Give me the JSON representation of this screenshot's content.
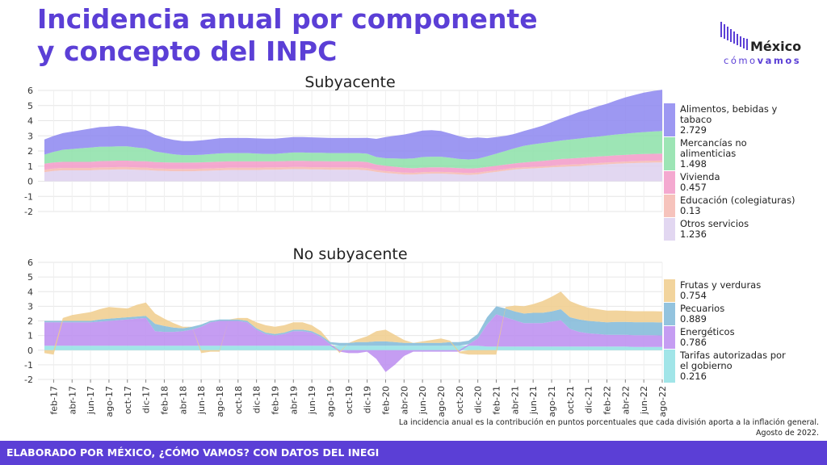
{
  "title": "Incidencia anual por componente y concepto del INPC",
  "logo": {
    "name": "México",
    "sub1": "cómo",
    "sub2": "vamos"
  },
  "footnote": {
    "line1": "La incidencia anual es la contribución en puntos porcentuales que cada división aporta a la inflación general.",
    "line2": "Agosto de 2022."
  },
  "footer": "ELABORADO POR MÉXICO, ¿CÓMO VAMOS? CON DATOS DEL INEGI",
  "colors": {
    "alimentos": "#8c86f0",
    "mercancias": "#8ce0a8",
    "vivienda": "#f29ac8",
    "educacion": "#f5b8b0",
    "otros": "#ddd0ee",
    "frutas": "#f0cd8c",
    "pecuarios": "#80b8d8",
    "energeticos": "#bb8cf0",
    "tarifas": "#90e0e4"
  },
  "chart_data": [
    {
      "type": "area",
      "title": "Subyacente",
      "stacked": true,
      "ylim": [
        -2,
        6
      ],
      "yticks": [
        -2,
        -1,
        0,
        1,
        2,
        3,
        4,
        5,
        6
      ],
      "x_start": "2017-01",
      "x_end": "2022-08",
      "legend": "right",
      "series": [
        {
          "name": "Otros servicios",
          "color_key": "otros",
          "last_value": "1.236",
          "values": [
            0.6,
            0.68,
            0.72,
            0.72,
            0.72,
            0.72,
            0.75,
            0.76,
            0.78,
            0.78,
            0.75,
            0.74,
            0.7,
            0.68,
            0.66,
            0.66,
            0.66,
            0.68,
            0.7,
            0.72,
            0.74,
            0.74,
            0.74,
            0.74,
            0.76,
            0.76,
            0.78,
            0.8,
            0.8,
            0.78,
            0.78,
            0.76,
            0.76,
            0.76,
            0.76,
            0.72,
            0.62,
            0.55,
            0.5,
            0.45,
            0.44,
            0.48,
            0.5,
            0.5,
            0.48,
            0.45,
            0.42,
            0.45,
            0.55,
            0.62,
            0.7,
            0.78,
            0.82,
            0.85,
            0.88,
            0.92,
            0.95,
            0.98,
            1.0,
            1.05,
            1.08,
            1.12,
            1.15,
            1.18,
            1.2,
            1.22,
            1.23,
            1.236
          ]
        },
        {
          "name": "Educación (colegiaturas)",
          "color_key": "educacion",
          "last_value": "0.13",
          "values": [
            0.16,
            0.16,
            0.16,
            0.16,
            0.16,
            0.16,
            0.16,
            0.16,
            0.16,
            0.16,
            0.16,
            0.16,
            0.15,
            0.15,
            0.15,
            0.15,
            0.15,
            0.15,
            0.15,
            0.15,
            0.15,
            0.15,
            0.15,
            0.15,
            0.15,
            0.15,
            0.15,
            0.15,
            0.15,
            0.15,
            0.15,
            0.15,
            0.15,
            0.15,
            0.15,
            0.15,
            0.12,
            0.12,
            0.12,
            0.12,
            0.12,
            0.12,
            0.12,
            0.12,
            0.12,
            0.12,
            0.12,
            0.12,
            0.1,
            0.1,
            0.1,
            0.1,
            0.1,
            0.1,
            0.1,
            0.1,
            0.12,
            0.12,
            0.12,
            0.12,
            0.12,
            0.12,
            0.12,
            0.12,
            0.13,
            0.13,
            0.13,
            0.13
          ]
        },
        {
          "name": "Vivienda",
          "color_key": "vivienda",
          "last_value": "0.457",
          "values": [
            0.4,
            0.4,
            0.4,
            0.4,
            0.4,
            0.4,
            0.42,
            0.42,
            0.42,
            0.42,
            0.42,
            0.42,
            0.42,
            0.42,
            0.42,
            0.42,
            0.42,
            0.42,
            0.42,
            0.42,
            0.42,
            0.42,
            0.42,
            0.42,
            0.4,
            0.4,
            0.4,
            0.4,
            0.4,
            0.4,
            0.4,
            0.4,
            0.4,
            0.4,
            0.4,
            0.4,
            0.36,
            0.35,
            0.34,
            0.32,
            0.3,
            0.3,
            0.3,
            0.3,
            0.3,
            0.3,
            0.3,
            0.3,
            0.3,
            0.3,
            0.3,
            0.3,
            0.32,
            0.34,
            0.36,
            0.38,
            0.4,
            0.4,
            0.42,
            0.42,
            0.43,
            0.43,
            0.44,
            0.44,
            0.45,
            0.45,
            0.455,
            0.457
          ]
        },
        {
          "name": "Mercancías no alimenticias",
          "color_key": "mercancias",
          "last_value": "1.498",
          "values": [
            0.6,
            0.7,
            0.8,
            0.85,
            0.9,
            0.95,
            0.95,
            0.95,
            0.95,
            0.95,
            0.9,
            0.85,
            0.7,
            0.62,
            0.55,
            0.5,
            0.5,
            0.5,
            0.52,
            0.55,
            0.55,
            0.55,
            0.55,
            0.52,
            0.5,
            0.5,
            0.52,
            0.55,
            0.55,
            0.55,
            0.55,
            0.55,
            0.55,
            0.55,
            0.55,
            0.55,
            0.5,
            0.5,
            0.55,
            0.6,
            0.65,
            0.7,
            0.7,
            0.7,
            0.65,
            0.6,
            0.6,
            0.62,
            0.7,
            0.8,
            0.9,
            1.0,
            1.1,
            1.15,
            1.18,
            1.2,
            1.22,
            1.25,
            1.28,
            1.3,
            1.32,
            1.35,
            1.38,
            1.4,
            1.42,
            1.45,
            1.47,
            1.498
          ]
        },
        {
          "name": "Alimentos, bebidas y tabaco",
          "color_key": "alimentos",
          "last_value": "2.729",
          "values": [
            1.0,
            1.05,
            1.1,
            1.15,
            1.2,
            1.25,
            1.3,
            1.32,
            1.35,
            1.3,
            1.25,
            1.22,
            1.1,
            1.0,
            0.95,
            0.92,
            0.92,
            0.95,
            0.98,
            1.0,
            1.0,
            1.0,
            1.0,
            1.0,
            1.0,
            1.0,
            1.02,
            1.02,
            1.02,
            1.02,
            1.0,
            1.0,
            1.0,
            1.0,
            1.0,
            1.05,
            1.2,
            1.4,
            1.5,
            1.6,
            1.7,
            1.75,
            1.75,
            1.7,
            1.6,
            1.5,
            1.4,
            1.4,
            1.2,
            1.1,
            1.0,
            0.95,
            0.98,
            1.05,
            1.15,
            1.3,
            1.45,
            1.6,
            1.75,
            1.85,
            2.0,
            2.1,
            2.25,
            2.4,
            2.5,
            2.6,
            2.68,
            2.729
          ]
        }
      ]
    },
    {
      "type": "area",
      "title": "No subyacente",
      "stacked": true,
      "ylim": [
        -2,
        6
      ],
      "yticks": [
        -2,
        -1,
        0,
        1,
        2,
        3,
        4,
        5,
        6
      ],
      "x_start": "2017-01",
      "x_end": "2022-08",
      "xtick_labels": [
        "feb-17",
        "abr-17",
        "jun-17",
        "ago-17",
        "oct-17",
        "dic-17",
        "feb-18",
        "abr-18",
        "jun-18",
        "ago-18",
        "oct-18",
        "dic-18",
        "feb-19",
        "abr-19",
        "jun-19",
        "ago-19",
        "oct-19",
        "dic-19",
        "feb-20",
        "abr-20",
        "jun-20",
        "ago-20",
        "oct-20",
        "dic-20",
        "feb-21",
        "abr-21",
        "jun-21",
        "ago-21",
        "oct-21",
        "dic-21",
        "feb-22",
        "abr-22",
        "jun-22",
        "ago-22"
      ],
      "legend": "right",
      "series": [
        {
          "name": "Tarifas autorizadas por el gobierno",
          "color_key": "tarifas",
          "last_value": "0.216",
          "values": [
            0.3,
            0.3,
            0.3,
            0.3,
            0.3,
            0.3,
            0.3,
            0.3,
            0.3,
            0.3,
            0.3,
            0.3,
            0.3,
            0.3,
            0.3,
            0.3,
            0.3,
            0.3,
            0.3,
            0.3,
            0.3,
            0.3,
            0.3,
            0.3,
            0.3,
            0.3,
            0.3,
            0.3,
            0.3,
            0.3,
            0.3,
            0.3,
            0.3,
            0.3,
            0.3,
            0.3,
            0.3,
            0.3,
            0.3,
            0.3,
            0.3,
            0.3,
            0.3,
            0.3,
            0.3,
            0.3,
            0.3,
            0.3,
            0.25,
            0.25,
            0.25,
            0.25,
            0.25,
            0.25,
            0.25,
            0.25,
            0.25,
            0.25,
            0.25,
            0.25,
            0.25,
            0.25,
            0.25,
            0.25,
            0.22,
            0.22,
            0.22,
            0.216
          ]
        },
        {
          "name": "Energéticos",
          "color_key": "energeticos",
          "last_value": "0.786",
          "values": [
            1.6,
            1.6,
            1.6,
            1.6,
            1.6,
            1.6,
            1.65,
            1.7,
            1.75,
            1.8,
            1.85,
            1.9,
            1.0,
            0.95,
            0.95,
            1.0,
            1.1,
            1.3,
            1.6,
            1.7,
            1.7,
            1.7,
            1.6,
            1.1,
            0.8,
            0.7,
            0.8,
            1.0,
            1.0,
            0.9,
            0.6,
            0.1,
            -0.1,
            -0.2,
            -0.2,
            -0.1,
            -0.6,
            -1.5,
            -1.0,
            -0.4,
            -0.1,
            -0.1,
            -0.1,
            -0.1,
            -0.1,
            -0.1,
            0.1,
            0.5,
            1.5,
            2.2,
            2.0,
            1.8,
            1.6,
            1.6,
            1.6,
            1.7,
            1.8,
            1.2,
            1.0,
            0.9,
            0.85,
            0.8,
            0.8,
            0.8,
            0.8,
            0.8,
            0.8,
            0.786
          ]
        },
        {
          "name": "Pecuarios",
          "color_key": "pecuarios",
          "last_value": "0.889",
          "values": [
            0.1,
            0.1,
            0.1,
            0.1,
            0.1,
            0.1,
            0.15,
            0.15,
            0.15,
            0.15,
            0.15,
            0.15,
            0.5,
            0.4,
            0.3,
            0.2,
            0.2,
            0.15,
            0.1,
            0.1,
            0.1,
            0.1,
            0.1,
            0.1,
            0.1,
            0.1,
            0.1,
            0.1,
            0.1,
            0.1,
            0.1,
            0.15,
            0.2,
            0.2,
            0.25,
            0.25,
            0.3,
            0.3,
            0.25,
            0.2,
            0.2,
            0.2,
            0.2,
            0.2,
            0.25,
            0.25,
            0.25,
            0.3,
            0.5,
            0.55,
            0.6,
            0.6,
            0.65,
            0.7,
            0.7,
            0.7,
            0.75,
            0.8,
            0.85,
            0.85,
            0.85,
            0.85,
            0.88,
            0.88,
            0.89,
            0.89,
            0.889,
            0.889
          ]
        },
        {
          "name": "Frutas y verduras",
          "color_key": "frutas",
          "last_value": "0.754",
          "values": [
            -0.2,
            -0.3,
            0.2,
            0.4,
            0.5,
            0.6,
            0.7,
            0.8,
            0.7,
            0.6,
            0.8,
            0.9,
            0.7,
            0.5,
            0.3,
            0.1,
            0.0,
            -0.2,
            -0.1,
            -0.1,
            0.0,
            0.1,
            0.2,
            0.4,
            0.5,
            0.5,
            0.5,
            0.5,
            0.5,
            0.4,
            0.3,
            0.0,
            -0.1,
            0.0,
            0.2,
            0.4,
            0.7,
            0.8,
            0.5,
            0.2,
            0.0,
            0.1,
            0.2,
            0.3,
            0.1,
            -0.1,
            -0.3,
            -0.3,
            -0.3,
            -0.3,
            0.1,
            0.4,
            0.5,
            0.6,
            0.8,
            1.0,
            1.2,
            1.1,
            1.0,
            0.9,
            0.85,
            0.8,
            0.78,
            0.76,
            0.75,
            0.75,
            0.754,
            0.754
          ]
        }
      ]
    }
  ]
}
